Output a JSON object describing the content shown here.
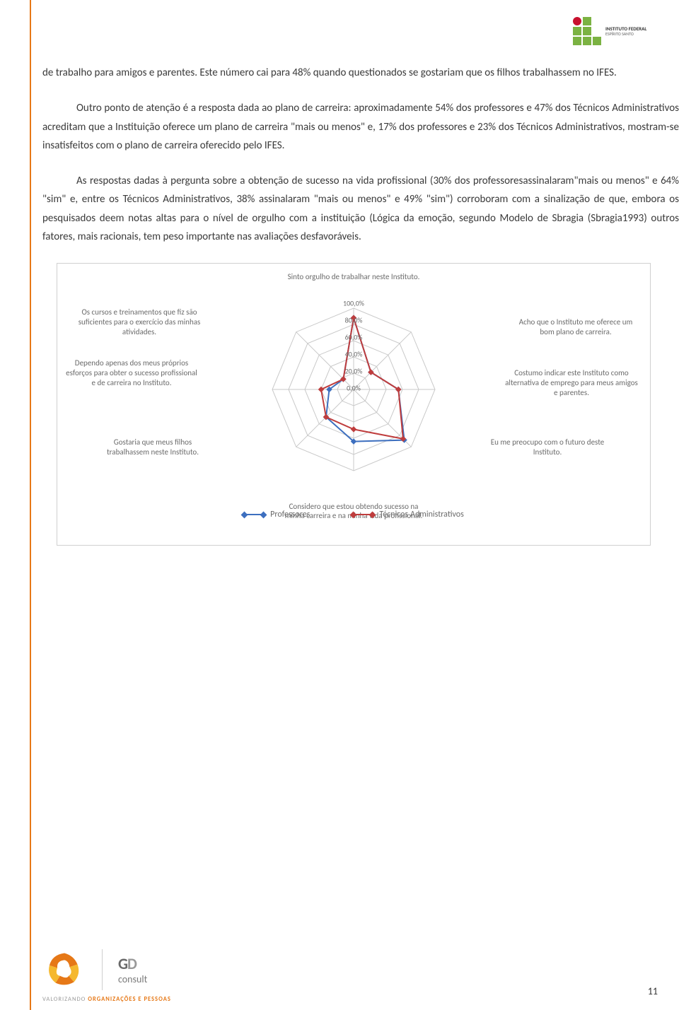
{
  "header": {
    "institute_name": "INSTITUTO FEDERAL",
    "institute_sub": "ESPÍRITO SANTO",
    "logo_colors": {
      "red": "#c8102e",
      "green": "#7bb242"
    }
  },
  "paragraphs": {
    "p1": "de trabalho para amigos e parentes. Este número cai para 48% quando questionados se gostariam que os filhos trabalhassem no IFES.",
    "p2": "Outro ponto de atenção é a resposta dada ao plano de carreira: aproximadamente 54% dos professores e 47% dos Técnicos Administrativos acreditam que a Instituição oferece um plano de carreira \"mais ou menos\" e, 17% dos professores e 23% dos Técnicos Administrativos, mostram-se insatisfeitos com o plano de carreira oferecido pelo IFES.",
    "p3": "As respostas dadas à pergunta sobre a obtenção de sucesso na vida profissional (30% dos professoresassinalaram\"mais ou menos\" e 64% \"sim\" e, entre os Técnicos Administrativos, 38% assinalaram \"mais ou menos\" e 49% \"sim\") corroboram com a sinalização de que, embora os pesquisados deem notas altas para o nível de orgulho com a instituição (Lógica da emoção, segundo Modelo de Sbragia (Sbragia1993) outros fatores, mais racionais, tem peso importante nas avaliações desfavoráveis."
  },
  "chart": {
    "type": "radar",
    "axes": [
      "Sinto orgulho de trabalhar neste Instituto.",
      "Acho que o Instituto me oferece um bom plano de carreira.",
      "Costumo indicar este Instituto como alternativa de emprego para meus amigos e parentes.",
      "Eu me preocupo com o futuro deste Instituto.",
      "Considero que estou obtendo sucesso na minha carreira e na minha vida profissional.",
      "Gostaria que meus filhos trabalhassem neste Instituto.",
      "Dependo apenas dos meus próprios esforços para obter o sucesso profissional e de carreira no Instituto.",
      "Os cursos e treinamentos que fiz são suficientes para o exercício das minhas atividades."
    ],
    "ring_labels": [
      "100,0%",
      "80,0%",
      "60,0%",
      "40,0%",
      "20,0%",
      "0,0%"
    ],
    "series": [
      {
        "name": "Professores",
        "color": "#3d6fbf",
        "values": [
          88,
          30,
          55,
          88,
          64,
          48,
          30,
          18
        ]
      },
      {
        "name": "Técnicos Administrativos",
        "color": "#bf3d3d",
        "values": [
          88,
          30,
          55,
          86,
          49,
          48,
          40,
          18
        ]
      }
    ],
    "max_value": 100,
    "grid_color": "#c9c9c9",
    "background_color": "#ffffff",
    "label_fontsize": 11,
    "label_color": "#6b6b6b"
  },
  "footer": {
    "consult": "consult",
    "gd": "GD",
    "tagline_pre": "VALORIZANDO ",
    "tagline_strong": "ORGANIZAÇÕES E PESSOAS",
    "spiral_colors": {
      "orange": "#e67817",
      "yellow": "#f5b82e"
    }
  },
  "page_number": "11"
}
